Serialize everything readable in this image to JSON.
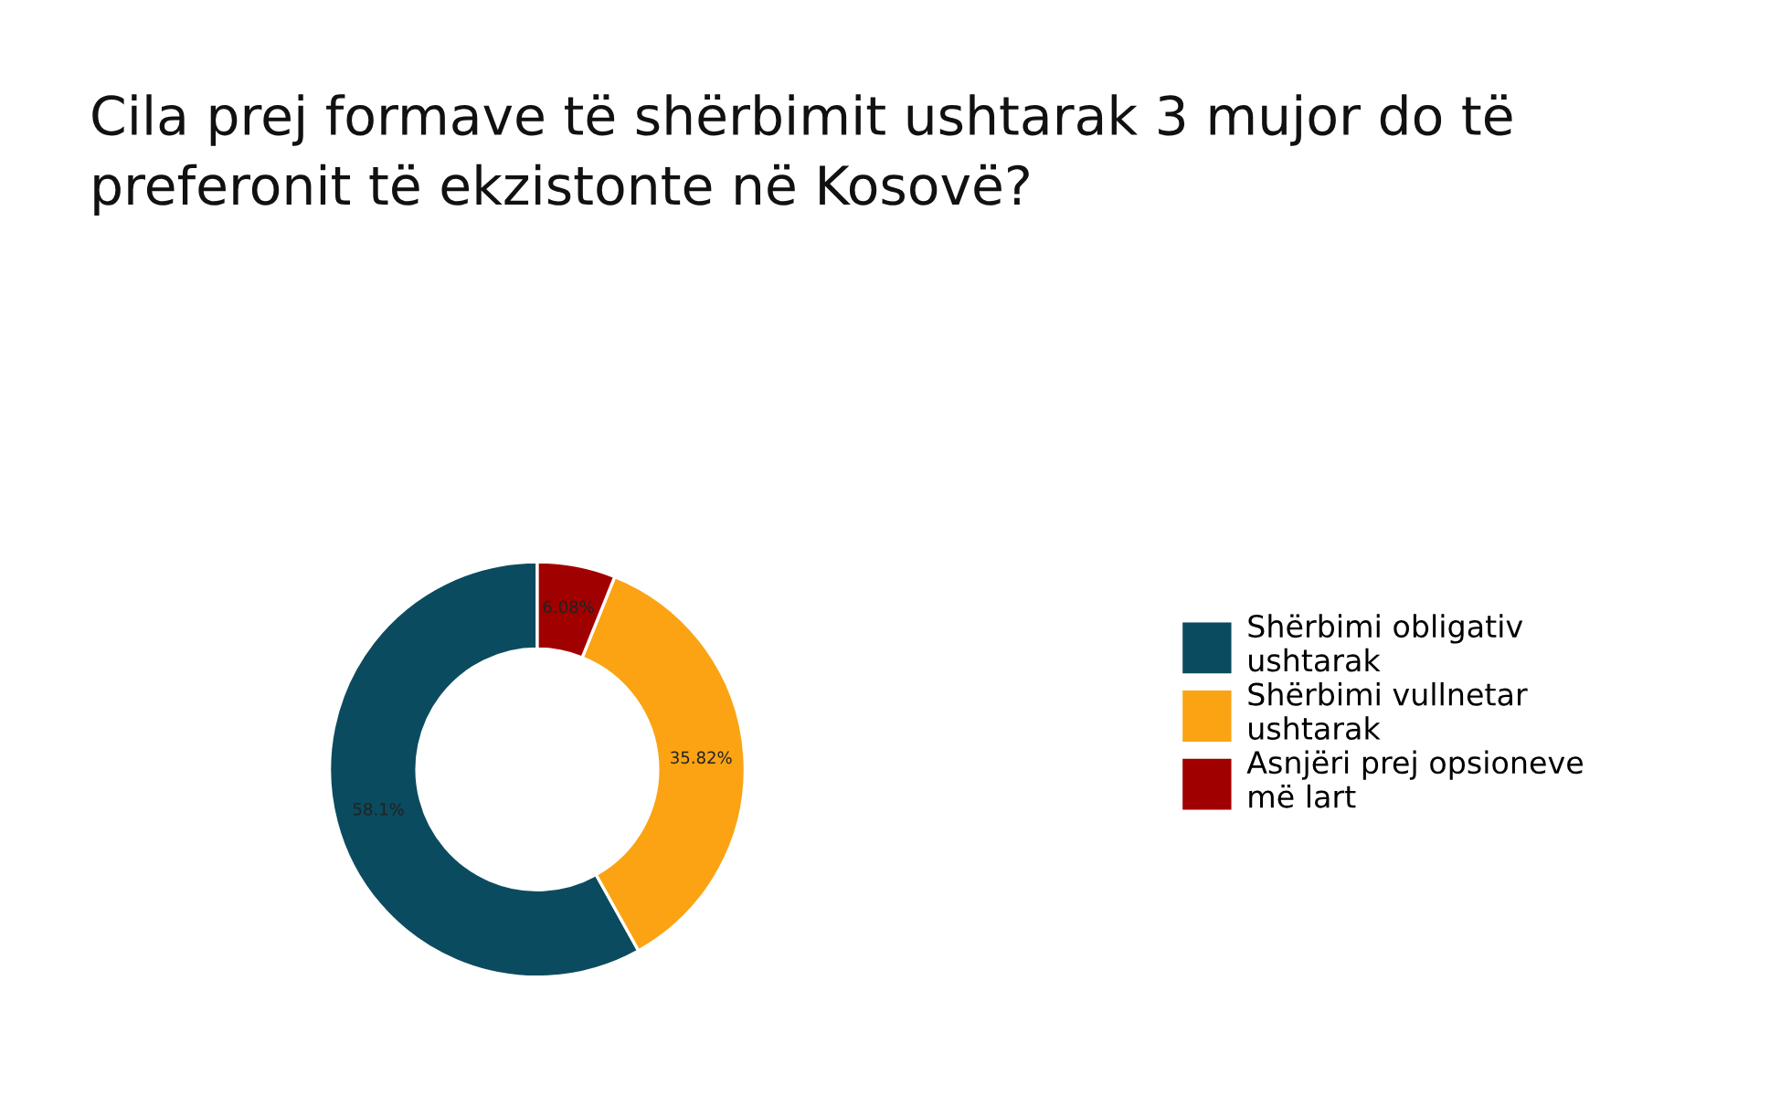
{
  "chart_data": {
    "type": "donut",
    "title": "Cila prej formave të shërbimit ushtarak 3 mujor do të preferonit të ekzistonte në Kosovë?",
    "categories": [
      "Shërbimi obligativ ushtarak",
      "Shërbimi vullnetar ushtarak",
      "Asnjëri prej opsioneve më lart"
    ],
    "values": [
      58.1,
      35.82,
      6.08
    ],
    "colors": [
      "#0b4b5f",
      "#fba313",
      "#a10000"
    ],
    "value_labels": [
      "58.1%",
      "35.82%",
      "6.08%"
    ],
    "legend": "right"
  }
}
